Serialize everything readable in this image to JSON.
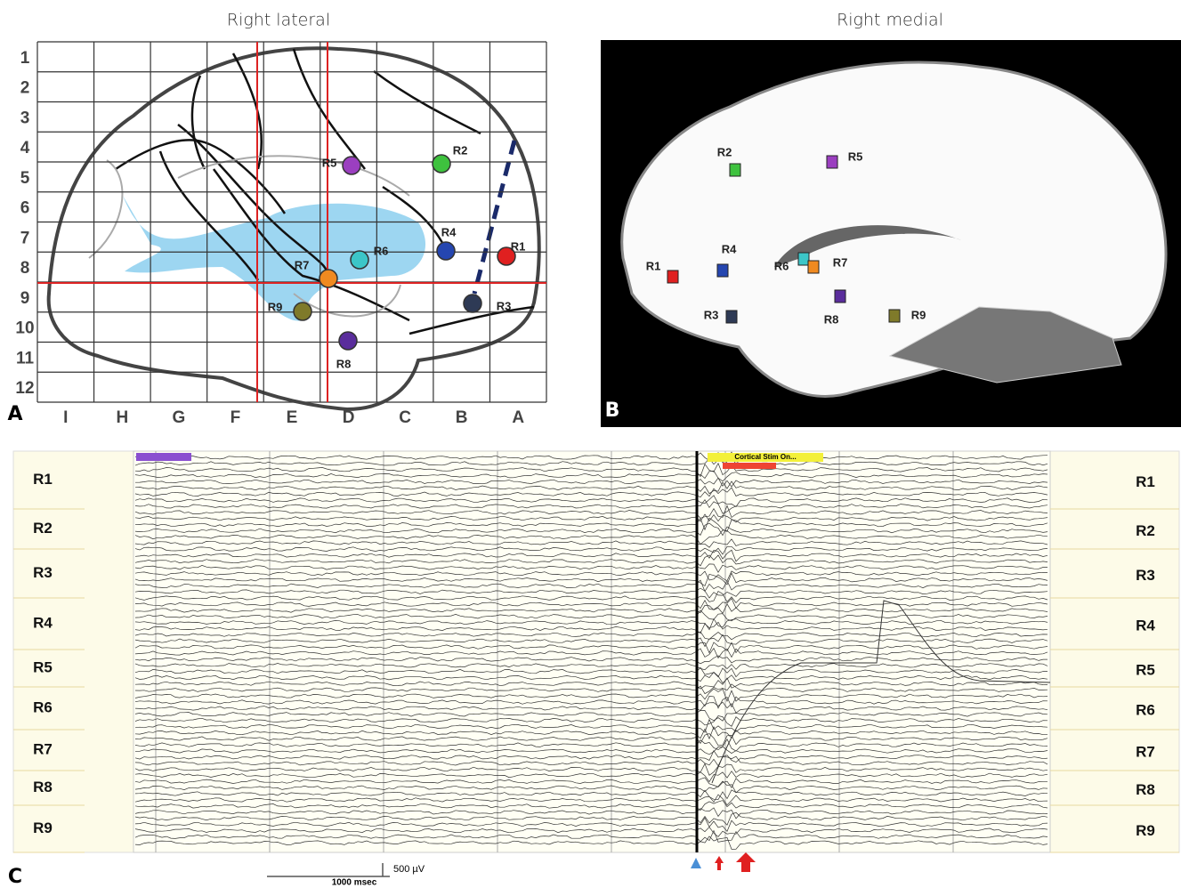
{
  "panel_a": {
    "label": "A",
    "title": "Right lateral",
    "rows": [
      "1",
      "2",
      "3",
      "4",
      "5",
      "6",
      "7",
      "8",
      "9",
      "10",
      "11",
      "12"
    ],
    "columns": [
      "I",
      "H",
      "G",
      "F",
      "E",
      "D",
      "C",
      "B",
      "A"
    ],
    "electrodes": [
      "R1",
      "R2",
      "R3",
      "R4",
      "R5",
      "R6",
      "R7",
      "R8",
      "R9"
    ]
  },
  "panel_b": {
    "label": "B",
    "title": "Right medial",
    "electrodes": [
      "R1",
      "R2",
      "R3",
      "R4",
      "R5",
      "R6",
      "R7",
      "R8",
      "R9"
    ]
  },
  "panel_c": {
    "label": "C",
    "annotation": "Cortical Stim On...",
    "channels_left": [
      "R1",
      "R2",
      "R3",
      "R4",
      "R5",
      "R6",
      "R7",
      "R8",
      "R9"
    ],
    "channels_right": [
      "R1",
      "R2",
      "R3",
      "R4",
      "R5",
      "R6",
      "R7",
      "R8",
      "R9"
    ],
    "scale_voltage": "500 µV",
    "scale_time": "1000 msec"
  }
}
